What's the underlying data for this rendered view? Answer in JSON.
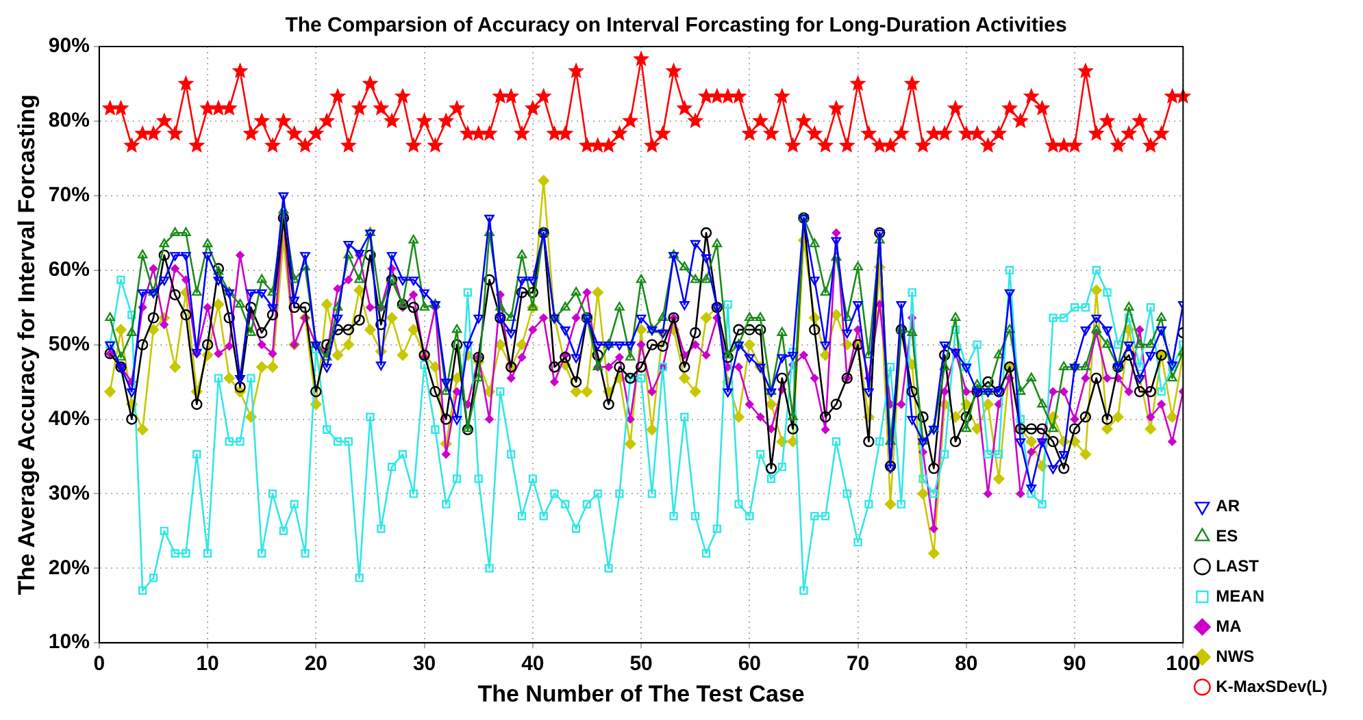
{
  "chart_data": {
    "type": "line",
    "title": "The Comparsion of Accuracy on Interval Forcasting for Long-Duration Activities",
    "xlabel": "The Number of The Test Case",
    "ylabel": "The Average Accuracy for Interval Forcasting",
    "x": [
      1,
      2,
      3,
      4,
      5,
      6,
      7,
      8,
      9,
      10,
      11,
      12,
      13,
      14,
      15,
      16,
      17,
      18,
      19,
      20,
      21,
      22,
      23,
      24,
      25,
      26,
      27,
      28,
      29,
      30,
      31,
      32,
      33,
      34,
      35,
      36,
      37,
      38,
      39,
      40,
      41,
      42,
      43,
      44,
      45,
      46,
      47,
      48,
      49,
      50,
      51,
      52,
      53,
      54,
      55,
      56,
      57,
      58,
      59,
      60,
      61,
      62,
      63,
      64,
      65,
      66,
      67,
      68,
      69,
      70,
      71,
      72,
      73,
      74,
      75,
      76,
      77,
      78,
      79,
      80,
      81,
      82,
      83,
      84,
      85,
      86,
      87,
      88,
      89,
      90,
      91,
      92,
      93,
      94,
      95,
      96,
      97,
      98,
      99,
      100
    ],
    "xlim": [
      0,
      100
    ],
    "xticks": [
      0,
      10,
      20,
      30,
      40,
      50,
      60,
      70,
      80,
      90,
      100
    ],
    "ylim": [
      10,
      90
    ],
    "yticks": [
      {
        "value": 10,
        "label": "10%"
      },
      {
        "value": 20,
        "label": "20%"
      },
      {
        "value": 30,
        "label": "30%"
      },
      {
        "value": 40,
        "label": "40%"
      },
      {
        "value": 50,
        "label": "50%"
      },
      {
        "value": 60,
        "label": "60%"
      },
      {
        "value": 70,
        "label": "70%"
      },
      {
        "value": 80,
        "label": "80%"
      },
      {
        "value": 90,
        "label": "90%"
      }
    ],
    "grid": true,
    "legend": "bottom right",
    "line_style": "solid",
    "series": [
      {
        "name": "AR",
        "color": "#0000ff",
        "marker": "triangle",
        "values": [
          50,
          47,
          43.7,
          57,
          57,
          58.7,
          62,
          62,
          49,
          62,
          58.7,
          57,
          45.5,
          57,
          57,
          55,
          70,
          56,
          62,
          50,
          47,
          53.6,
          63.5,
          62.3,
          65,
          47.3,
          62,
          58.7,
          58.7,
          57,
          55.4,
          45,
          40,
          50,
          53.6,
          67,
          53.6,
          51.6,
          58.7,
          58.7,
          65,
          53.6,
          52,
          48.3,
          53.6,
          50,
          50,
          50,
          50,
          53.6,
          52,
          51.6,
          62,
          55.4,
          63.6,
          61.7,
          55,
          43.7,
          50,
          48.3,
          47,
          43.7,
          48.3,
          48.6,
          67,
          58.7,
          50,
          64,
          51.6,
          55.4,
          43.7,
          65,
          33.5,
          55.4,
          40,
          37,
          38.7,
          50,
          49,
          47,
          43.7,
          43.7,
          43.7,
          57,
          37,
          30.8,
          37,
          33.4,
          35.3,
          47,
          52,
          53.6,
          52,
          47,
          50,
          45.5,
          48.6,
          52,
          47.3,
          55.4
        ]
      },
      {
        "name": "ES",
        "color": "#1a8c1a",
        "marker": "triangle",
        "values": [
          53.6,
          48.3,
          51.6,
          62,
          57,
          63.5,
          65,
          65,
          57,
          63.5,
          59.8,
          57,
          55.4,
          51.6,
          58.7,
          57,
          68,
          58.7,
          60.4,
          50,
          48.3,
          55,
          62,
          58.7,
          65,
          55,
          58.7,
          55.4,
          64,
          55,
          55.4,
          43.7,
          52,
          38.7,
          45.5,
          65,
          55,
          53.6,
          62,
          55,
          65,
          53.6,
          55,
          57,
          53.6,
          47,
          50,
          55,
          48.3,
          58.7,
          52,
          53.6,
          62,
          60.4,
          58.7,
          58.7,
          63.5,
          48.6,
          50,
          53.6,
          53.6,
          43.7,
          51.6,
          40.3,
          67,
          63.5,
          57,
          61.7,
          53.6,
          60.4,
          48.6,
          64,
          37,
          52,
          51.6,
          37,
          38.7,
          47,
          53.6,
          38.7,
          44.6,
          43.7,
          48.6,
          52,
          43.7,
          45.5,
          42,
          38.7,
          47,
          47,
          47,
          52,
          50,
          47,
          55,
          50,
          50,
          53.6,
          45.5,
          49
        ]
      },
      {
        "name": "LAST",
        "color": "#000000",
        "marker": "circle",
        "values": [
          48.8,
          47,
          40,
          50,
          53.6,
          62,
          56.7,
          54,
          42,
          50,
          60.2,
          53.6,
          44.3,
          55,
          51.6,
          54,
          67,
          55,
          55,
          43.7,
          50,
          52,
          52,
          53.3,
          62,
          52.7,
          58.7,
          55.4,
          55,
          48.6,
          43.7,
          40,
          50,
          38.6,
          48.3,
          58.7,
          53.6,
          47,
          57,
          57,
          65,
          47,
          48.3,
          45,
          53.6,
          48.6,
          42,
          47,
          45.5,
          47,
          50,
          49.8,
          53.6,
          47,
          51.6,
          65,
          55,
          48.3,
          52,
          52,
          52,
          33.4,
          45.5,
          38.7,
          67,
          52,
          40.3,
          42,
          45.5,
          50,
          37,
          65,
          33.7,
          52,
          43.7,
          40.3,
          33.4,
          48.6,
          37,
          40.3,
          43.7,
          45,
          43.7,
          47,
          38.7,
          38.7,
          38.7,
          37,
          33.4,
          38.7,
          40.3,
          45.5,
          40,
          47,
          48.6,
          43.7,
          43.7,
          48.6,
          null,
          51.6
        ]
      },
      {
        "name": "MEAN",
        "color": "#33e6e6",
        "marker": "square",
        "values": [
          50,
          58.7,
          54,
          17,
          18.7,
          25,
          22,
          22,
          35.3,
          22,
          45.5,
          37,
          37,
          45.5,
          22,
          30,
          25,
          28.6,
          22,
          49.4,
          38.6,
          37,
          37,
          18.7,
          40.3,
          25.3,
          33.6,
          35.3,
          30,
          47.3,
          38.6,
          28.6,
          32,
          57,
          32,
          20,
          43.7,
          35.3,
          27,
          32,
          27,
          30,
          28.6,
          25.3,
          28.6,
          30,
          20,
          30,
          45.5,
          45.5,
          30,
          47,
          27,
          40.3,
          27,
          22,
          25.3,
          55.4,
          28.6,
          27,
          35.3,
          32,
          33.6,
          49,
          17,
          27,
          27,
          37,
          30,
          23.5,
          28.6,
          37,
          47,
          28.6,
          57,
          32,
          30,
          35.3,
          52,
          47,
          50,
          35.3,
          35.3,
          60,
          40,
          30,
          28.6,
          53.6,
          53.6,
          55,
          55,
          60,
          57,
          50,
          53.6,
          47,
          55,
          43.7,
          47,
          50
        ]
      },
      {
        "name": "MA",
        "color": "#cc00cc",
        "marker": "diamond",
        "values": [
          48.8,
          47,
          45,
          55,
          60.2,
          52.7,
          60.2,
          58.7,
          48.8,
          55,
          48.8,
          49.8,
          62,
          54,
          50,
          48.8,
          67,
          50,
          53.6,
          50,
          48.8,
          57.5,
          58.7,
          62,
          55,
          55,
          60.2,
          55,
          56.7,
          48.3,
          55,
          35.3,
          43.7,
          42,
          48.3,
          40,
          56.7,
          45.5,
          48.3,
          52,
          53.6,
          45,
          48.6,
          53.6,
          57,
          47,
          47,
          48.3,
          40,
          50,
          43.7,
          47,
          53.6,
          48.6,
          50,
          48.6,
          53.6,
          47,
          47,
          42,
          40.3,
          38.7,
          44,
          47.3,
          48.6,
          45.5,
          38.6,
          65,
          45.5,
          52,
          45.5,
          55.4,
          42,
          42,
          53.6,
          35.6,
          25.3,
          43.7,
          49,
          43.7,
          43.7,
          30,
          42,
          45.5,
          30,
          35.6,
          37,
          43.7,
          43.7,
          40,
          45.5,
          51.6,
          45.5,
          45.5,
          43.7,
          52,
          40.3,
          42,
          37,
          43.7
        ]
      },
      {
        "name": "NWS",
        "color": "#c8c800",
        "marker": "diamond",
        "values": [
          43.7,
          52,
          42,
          38.6,
          52,
          53.6,
          47,
          57,
          43.7,
          48.6,
          55.4,
          45.5,
          43.7,
          40.3,
          47,
          47,
          64,
          50,
          53.6,
          42,
          55.4,
          48.6,
          50,
          57.3,
          52,
          49.1,
          53.6,
          48.6,
          52,
          48.6,
          47,
          36.7,
          45.5,
          48.6,
          47.7,
          43.7,
          50,
          47,
          50,
          55,
          72,
          53.6,
          47.3,
          43.7,
          43.7,
          57,
          43.7,
          45.5,
          36.7,
          52,
          38.6,
          51.6,
          52,
          45.5,
          43.7,
          53.6,
          55,
          45,
          40.3,
          50,
          47,
          42,
          37,
          37,
          64,
          53.6,
          48.6,
          54,
          50,
          50,
          40.3,
          60.4,
          28.6,
          52,
          47.3,
          30,
          22,
          42,
          40.3,
          42,
          38.7,
          42,
          32,
          47,
          38.7,
          37,
          33.7,
          40.3,
          37,
          37,
          35.3,
          57.3,
          38.7,
          40.3,
          52,
          45.5,
          38.7,
          48.6,
          40.3,
          48.6
        ]
      },
      {
        "name": "K-MaxSDev(L)",
        "color": "#ff0000",
        "marker": "star",
        "values": [
          81.7,
          81.7,
          76.7,
          78.3,
          78.3,
          80,
          78.3,
          85,
          76.7,
          81.7,
          81.7,
          81.7,
          86.7,
          78.3,
          80,
          76.7,
          80,
          78.3,
          76.7,
          78.3,
          80,
          83.3,
          76.7,
          81.7,
          85,
          81.7,
          80,
          83.3,
          76.7,
          80,
          76.7,
          80,
          81.7,
          78.3,
          78.3,
          78.3,
          83.3,
          83.3,
          78.3,
          81.7,
          83.3,
          78.3,
          78.3,
          86.7,
          76.7,
          76.7,
          76.7,
          78.3,
          80,
          88.3,
          76.7,
          78.3,
          86.7,
          81.7,
          80,
          83.3,
          83.3,
          83.3,
          83.3,
          78.3,
          80,
          78.3,
          83.3,
          76.7,
          80,
          78.3,
          76.7,
          81.7,
          76.7,
          85,
          78.3,
          76.7,
          76.7,
          78.3,
          85,
          76.7,
          78.3,
          78.3,
          81.7,
          78.3,
          78.3,
          76.7,
          78.3,
          81.7,
          80,
          83.3,
          81.7,
          76.7,
          76.7,
          76.7,
          86.7,
          78.3,
          80,
          76.7,
          78.3,
          80,
          76.7,
          78.3,
          83.3,
          83.3
        ]
      }
    ]
  }
}
